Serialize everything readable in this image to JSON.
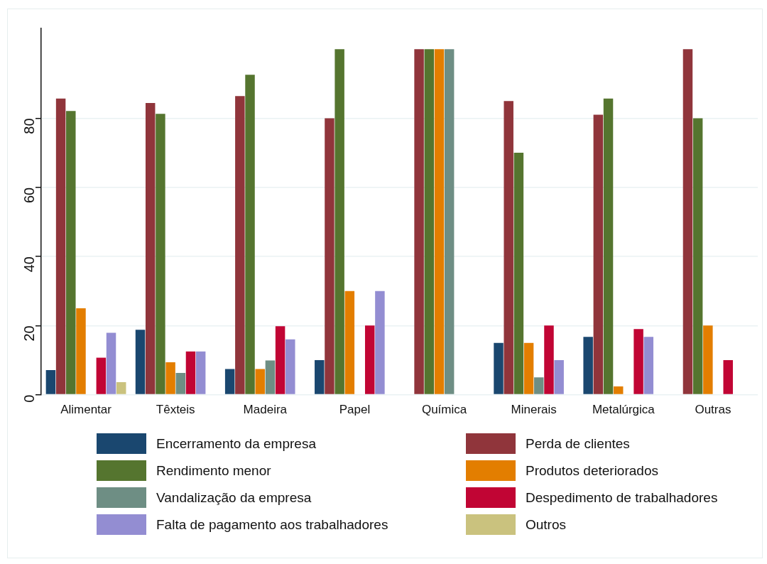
{
  "chart_data": {
    "type": "bar",
    "categories": [
      "Alimentar",
      "Têxteis",
      "Madeira",
      "Papel",
      "Química",
      "Minerais",
      "Metalúrgica",
      "Outras"
    ],
    "series": [
      {
        "name": "Encerramento da empresa",
        "color": "#1a476f",
        "values": [
          7.1,
          18.8,
          7.4,
          10,
          0,
          15,
          16.7,
          0
        ]
      },
      {
        "name": "Perda de clientes",
        "color": "#90353b",
        "values": [
          85.7,
          84.4,
          86.4,
          80,
          100,
          85,
          81,
          100
        ]
      },
      {
        "name": "Rendimento menor",
        "color": "#55752f",
        "values": [
          82.1,
          81.3,
          92.6,
          100,
          100,
          70,
          85.7,
          80
        ]
      },
      {
        "name": "Produtos deteriorados",
        "color": "#e37e00",
        "values": [
          25,
          9.4,
          7.4,
          30,
          100,
          15,
          2.4,
          20
        ]
      },
      {
        "name": "Vandalização da empresa",
        "color": "#6e8e84",
        "values": [
          0,
          6.3,
          9.9,
          0,
          100,
          5,
          0,
          0
        ]
      },
      {
        "name": "Despedimento de trabalhadores",
        "color": "#c10534",
        "values": [
          10.7,
          12.5,
          19.8,
          20,
          0,
          20,
          19,
          10
        ]
      },
      {
        "name": "Falta de pagamento aos trabalhadores",
        "color": "#938dd2",
        "values": [
          17.9,
          12.5,
          16.0,
          30,
          0,
          10,
          16.7,
          0
        ]
      },
      {
        "name": "Outros",
        "color": "#cac27e",
        "values": [
          3.6,
          0,
          0,
          0,
          0,
          0,
          0,
          0
        ]
      }
    ],
    "ylim": [
      0,
      106
    ],
    "yticks": [
      0,
      20,
      40,
      60,
      80
    ],
    "grid": "y",
    "legend": "bottom"
  }
}
